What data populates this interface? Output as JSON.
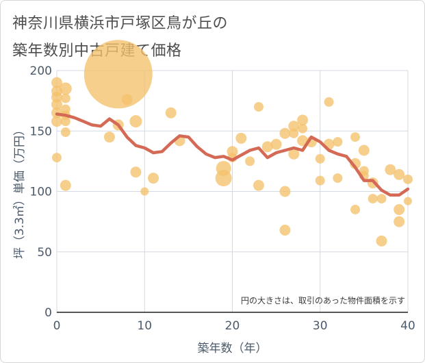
{
  "title": {
    "line1": "神奈川県横浜市戸塚区鳥が丘の",
    "line2": "築年数別中古戸建て価格"
  },
  "colors": {
    "bubble": "#f5c26b",
    "line": "#d46a55",
    "grid": "#d4dae3",
    "axis": "#4a5a6a"
  },
  "chart_data": {
    "type": "scatter",
    "title": "神奈川県横浜市戸塚区鳥が丘の築年数別中古戸建て価格",
    "xlabel": "築年数（年）",
    "ylabel": "坪（3.3㎡）単価（万円）",
    "xlim": [
      0,
      40
    ],
    "ylim": [
      0,
      200
    ],
    "xticks": [
      "0",
      "10",
      "20",
      "30",
      "40"
    ],
    "yticks": [
      "0",
      "50",
      "100",
      "150",
      "200"
    ],
    "annotation": "円の大きさは、取引のあった物件面積を示す",
    "bubbles": [
      {
        "x": 0,
        "y": 190,
        "s": 8
      },
      {
        "x": 0,
        "y": 183,
        "s": 8
      },
      {
        "x": 0,
        "y": 178,
        "s": 8
      },
      {
        "x": 0,
        "y": 172,
        "s": 8
      },
      {
        "x": 0,
        "y": 165,
        "s": 8
      },
      {
        "x": 0,
        "y": 158,
        "s": 8
      },
      {
        "x": 0,
        "y": 128,
        "s": 7
      },
      {
        "x": 1,
        "y": 185,
        "s": 9
      },
      {
        "x": 1,
        "y": 177,
        "s": 7
      },
      {
        "x": 1,
        "y": 168,
        "s": 7
      },
      {
        "x": 1,
        "y": 163,
        "s": 7
      },
      {
        "x": 1,
        "y": 158,
        "s": 7
      },
      {
        "x": 1,
        "y": 149,
        "s": 7
      },
      {
        "x": 1,
        "y": 105,
        "s": 8
      },
      {
        "x": 6,
        "y": 145,
        "s": 8
      },
      {
        "x": 7,
        "y": 155,
        "s": 8
      },
      {
        "x": 7,
        "y": 197,
        "s": 50
      },
      {
        "x": 8,
        "y": 176,
        "s": 8
      },
      {
        "x": 9,
        "y": 158,
        "s": 9
      },
      {
        "x": 9,
        "y": 116,
        "s": 8
      },
      {
        "x": 10,
        "y": 100,
        "s": 6
      },
      {
        "x": 11,
        "y": 111,
        "s": 8
      },
      {
        "x": 13,
        "y": 165,
        "s": 8
      },
      {
        "x": 14,
        "y": 142,
        "s": 8
      },
      {
        "x": 19,
        "y": 119,
        "s": 11
      },
      {
        "x": 19,
        "y": 111,
        "s": 12
      },
      {
        "x": 20,
        "y": 128,
        "s": 7
      },
      {
        "x": 20,
        "y": 133,
        "s": 8
      },
      {
        "x": 21,
        "y": 144,
        "s": 8
      },
      {
        "x": 22,
        "y": 125,
        "s": 7
      },
      {
        "x": 23,
        "y": 170,
        "s": 7
      },
      {
        "x": 23,
        "y": 105,
        "s": 8
      },
      {
        "x": 24,
        "y": 137,
        "s": 8
      },
      {
        "x": 25,
        "y": 139,
        "s": 8
      },
      {
        "x": 26,
        "y": 148,
        "s": 8
      },
      {
        "x": 26,
        "y": 100,
        "s": 8
      },
      {
        "x": 26,
        "y": 68,
        "s": 8
      },
      {
        "x": 27,
        "y": 154,
        "s": 8
      },
      {
        "x": 27,
        "y": 148,
        "s": 7
      },
      {
        "x": 27,
        "y": 131,
        "s": 8
      },
      {
        "x": 28,
        "y": 159,
        "s": 8
      },
      {
        "x": 28,
        "y": 152,
        "s": 7
      },
      {
        "x": 28,
        "y": 142,
        "s": 8
      },
      {
        "x": 29,
        "y": 141,
        "s": 8
      },
      {
        "x": 30,
        "y": 127,
        "s": 7
      },
      {
        "x": 30,
        "y": 109,
        "s": 7
      },
      {
        "x": 31,
        "y": 174,
        "s": 7
      },
      {
        "x": 31,
        "y": 139,
        "s": 8
      },
      {
        "x": 32,
        "y": 141,
        "s": 7
      },
      {
        "x": 32,
        "y": 111,
        "s": 7
      },
      {
        "x": 34,
        "y": 145,
        "s": 7
      },
      {
        "x": 34,
        "y": 123,
        "s": 8
      },
      {
        "x": 34,
        "y": 85,
        "s": 7
      },
      {
        "x": 35,
        "y": 134,
        "s": 8
      },
      {
        "x": 35,
        "y": 117,
        "s": 7
      },
      {
        "x": 35,
        "y": 113,
        "s": 7
      },
      {
        "x": 36,
        "y": 107,
        "s": 8
      },
      {
        "x": 36,
        "y": 94,
        "s": 7
      },
      {
        "x": 37,
        "y": 94,
        "s": 7
      },
      {
        "x": 37,
        "y": 59,
        "s": 8
      },
      {
        "x": 38,
        "y": 118,
        "s": 8
      },
      {
        "x": 39,
        "y": 114,
        "s": 8
      },
      {
        "x": 39,
        "y": 85,
        "s": 8
      },
      {
        "x": 39,
        "y": 75,
        "s": 8
      },
      {
        "x": 40,
        "y": 110,
        "s": 7
      },
      {
        "x": 40,
        "y": 92,
        "s": 6
      }
    ],
    "trend": {
      "x": [
        0,
        1,
        2,
        3,
        4,
        5,
        6,
        7,
        8,
        9,
        10,
        11,
        12,
        13,
        14,
        15,
        16,
        17,
        18,
        19,
        20,
        21,
        22,
        23,
        24,
        25,
        26,
        27,
        28,
        29,
        30,
        31,
        32,
        33,
        34,
        35,
        36,
        37,
        38,
        39,
        40
      ],
      "y": [
        164,
        163,
        161,
        158,
        155,
        154,
        160,
        155,
        145,
        138,
        136,
        132,
        133,
        140,
        146,
        145,
        137,
        131,
        128,
        129,
        126,
        130,
        134,
        136,
        128,
        132,
        134,
        136,
        134,
        145,
        141,
        134,
        131,
        129,
        120,
        109,
        109,
        101,
        97,
        97,
        102
      ]
    }
  }
}
